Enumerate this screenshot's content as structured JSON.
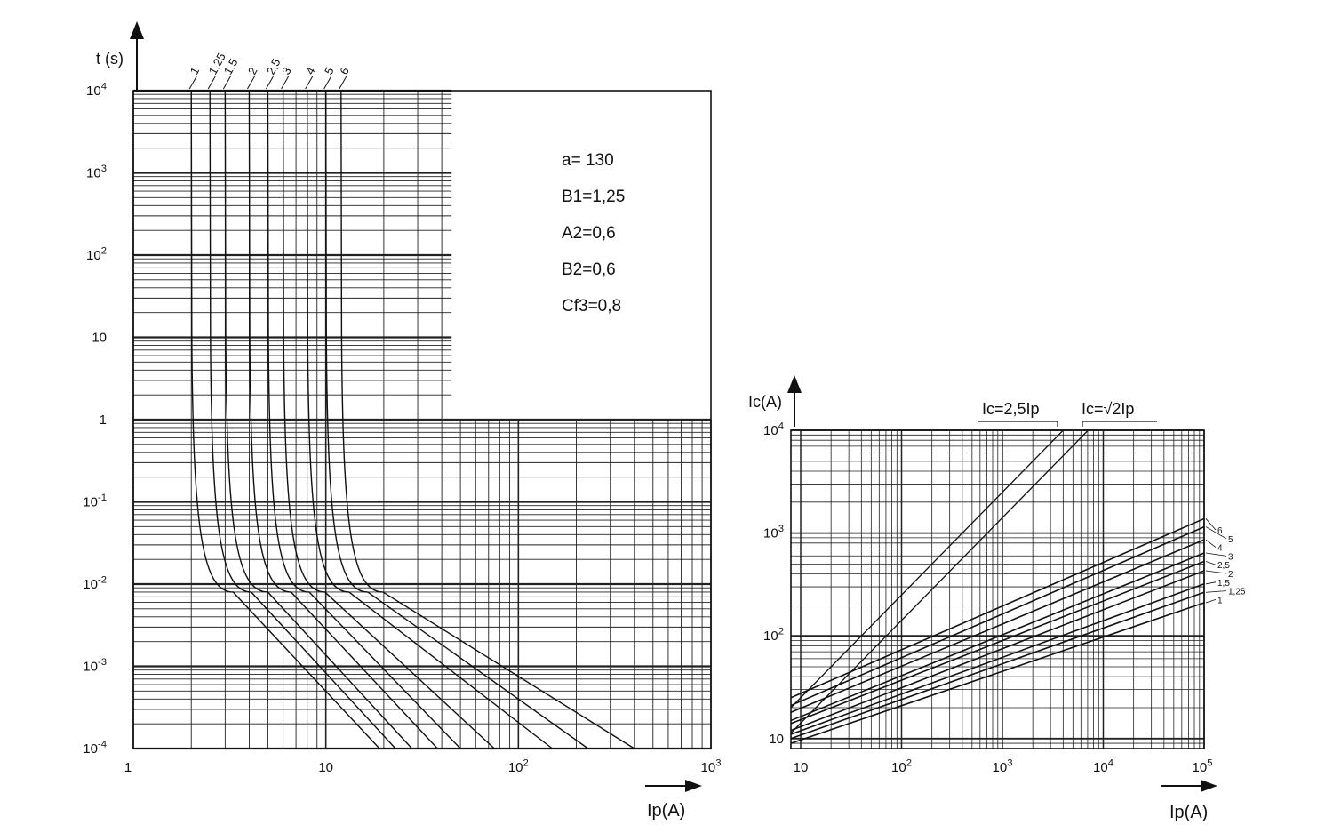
{
  "chart_data": [
    {
      "type": "line",
      "xscale": "log",
      "yscale": "log",
      "xlim": [
        1,
        1000
      ],
      "ylim": [
        0.0001,
        10000
      ],
      "grid": true,
      "xlabel": "Ip(A)",
      "ylabel": "t (s)",
      "xticks": [
        {
          "v": 1,
          "base": "1",
          "exp": ""
        },
        {
          "v": 10,
          "base": "10",
          "exp": ""
        },
        {
          "v": 100,
          "base": "10",
          "exp": "2"
        },
        {
          "v": 1000,
          "base": "10",
          "exp": "3"
        }
      ],
      "yticks": [
        {
          "v": 10000,
          "base": "10",
          "exp": "4"
        },
        {
          "v": 1000,
          "base": "10",
          "exp": "3"
        },
        {
          "v": 100,
          "base": "10",
          "exp": "2"
        },
        {
          "v": 10,
          "base": "10",
          "exp": ""
        },
        {
          "v": 1,
          "base": "1",
          "exp": ""
        },
        {
          "v": 0.1,
          "base": "10",
          "exp": "-1"
        },
        {
          "v": 0.01,
          "base": "10",
          "exp": "-2"
        },
        {
          "v": 0.001,
          "base": "10",
          "exp": "-3"
        },
        {
          "v": 0.0001,
          "base": "10",
          "exp": "-4"
        }
      ],
      "annotations": [
        "a= 130",
        "B1=1,25",
        "A2=0,6",
        "B2=0,6",
        "Cf3=0,8"
      ],
      "series": [
        {
          "name": "1",
          "ip0": 2.0,
          "ip_knee": 3.3,
          "t_knee": 0.008,
          "ip_end": 19.0,
          "t_end": 0.0001
        },
        {
          "name": "1,25",
          "ip0": 2.5,
          "ip_knee": 4.1,
          "t_knee": 0.008,
          "ip_end": 23.0,
          "t_end": 0.0001
        },
        {
          "name": "1,5",
          "ip0": 3.0,
          "ip_knee": 5.0,
          "t_knee": 0.008,
          "ip_end": 28.0,
          "t_end": 0.0001
        },
        {
          "name": "2",
          "ip0": 4.0,
          "ip_knee": 6.6,
          "t_knee": 0.008,
          "ip_end": 38.0,
          "t_end": 0.0001
        },
        {
          "name": "2,5",
          "ip0": 5.0,
          "ip_knee": 8.2,
          "t_knee": 0.008,
          "ip_end": 50.0,
          "t_end": 0.0001
        },
        {
          "name": "3",
          "ip0": 6.0,
          "ip_knee": 9.9,
          "t_knee": 0.008,
          "ip_end": 75.0,
          "t_end": 0.0001
        },
        {
          "name": "4",
          "ip0": 8.0,
          "ip_knee": 13.2,
          "t_knee": 0.008,
          "ip_end": 150.0,
          "t_end": 0.0001
        },
        {
          "name": "5",
          "ip0": 10.0,
          "ip_knee": 16.5,
          "t_knee": 0.008,
          "ip_end": 230.0,
          "t_end": 0.0001
        },
        {
          "name": "6",
          "ip0": 12.0,
          "ip_knee": 19.8,
          "t_knee": 0.008,
          "ip_end": 400.0,
          "t_end": 0.0001
        }
      ]
    },
    {
      "type": "line",
      "xscale": "log",
      "yscale": "log",
      "xlim": [
        8,
        100000
      ],
      "ylim": [
        8,
        10000
      ],
      "grid": true,
      "xlabel": "Ip(A)",
      "ylabel": "Ic(A)",
      "xticks": [
        {
          "v": 10,
          "base": "10",
          "exp": ""
        },
        {
          "v": 100,
          "base": "10",
          "exp": "2"
        },
        {
          "v": 1000,
          "base": "10",
          "exp": "3"
        },
        {
          "v": 10000,
          "base": "10",
          "exp": "4"
        },
        {
          "v": 100000,
          "base": "10",
          "exp": "5"
        }
      ],
      "yticks": [
        {
          "v": 10000,
          "base": "10",
          "exp": "4"
        },
        {
          "v": 1000,
          "base": "10",
          "exp": "3"
        },
        {
          "v": 100,
          "base": "10",
          "exp": "2"
        },
        {
          "v": 10,
          "base": "10",
          "exp": ""
        }
      ],
      "reference_lines": [
        {
          "label": "Ic=2,5Ip",
          "factor": 2.5
        },
        {
          "label": "Ic=√2Ip",
          "factor": 1.414
        }
      ],
      "series": [
        {
          "name": "6",
          "points": [
            [
              8,
              25
            ],
            [
              100000,
              1380
            ]
          ]
        },
        {
          "name": "5",
          "points": [
            [
              8,
              21
            ],
            [
              100000,
              1150
            ]
          ]
        },
        {
          "name": "4",
          "points": [
            [
              8,
              18
            ],
            [
              100000,
              860
            ]
          ]
        },
        {
          "name": "3",
          "points": [
            [
              8,
              15
            ],
            [
              100000,
              640
            ]
          ]
        },
        {
          "name": "2,5",
          "points": [
            [
              8,
              14
            ],
            [
              100000,
              530
            ]
          ]
        },
        {
          "name": "2",
          "points": [
            [
              8,
              12
            ],
            [
              100000,
              430
            ]
          ]
        },
        {
          "name": "1,5",
          "points": [
            [
              8,
              11
            ],
            [
              100000,
              320
            ]
          ]
        },
        {
          "name": "1,25",
          "points": [
            [
              8,
              10
            ],
            [
              100000,
              265
            ]
          ]
        },
        {
          "name": "1",
          "points": [
            [
              8,
              9
            ],
            [
              100000,
              210
            ]
          ]
        }
      ]
    }
  ]
}
